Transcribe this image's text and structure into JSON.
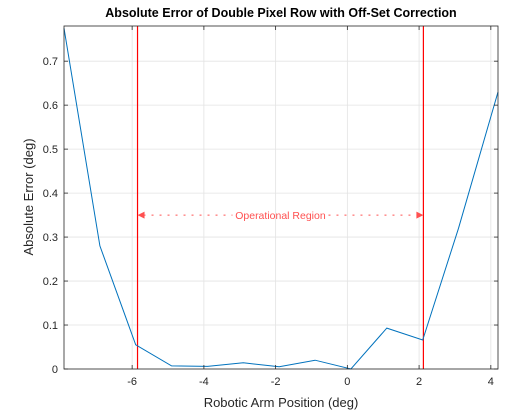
{
  "chart_data": {
    "type": "line",
    "title": "Absolute Error of Double Pixel Row with Off-Set Correction",
    "xlabel": "Robotic Arm Position (deg)",
    "ylabel": "Absolute Error (deg)",
    "xlim": [
      -7.9,
      4.2
    ],
    "ylim": [
      0,
      0.78
    ],
    "xticks": [
      -6,
      -4,
      -2,
      0,
      2,
      4
    ],
    "xtick_labels": [
      "-6",
      "-4",
      "-2",
      "0",
      "2",
      "4"
    ],
    "yticks": [
      0,
      0.1,
      0.2,
      0.3,
      0.4,
      0.5,
      0.6,
      0.7
    ],
    "ytick_labels": [
      "0",
      "0.1",
      "0.2",
      "0.3",
      "0.4",
      "0.5",
      "0.6",
      "0.7"
    ],
    "grid": true,
    "series": [
      {
        "color": "#0072bd",
        "x": [
          -7.9,
          -6.9,
          -5.9,
          -4.9,
          -3.9,
          -2.9,
          -1.9,
          -0.9,
          0.1,
          1.1,
          2.1,
          3.1,
          4.2
        ],
        "y": [
          0.775,
          0.28,
          0.055,
          0.007,
          0.006,
          0.014,
          0.005,
          0.02,
          0.0,
          0.093,
          0.066,
          0.32,
          0.63
        ]
      }
    ],
    "vlines": [
      {
        "x": -5.85,
        "color": "#ff0000"
      },
      {
        "x": 2.12,
        "color": "#ff0000"
      }
    ],
    "annotation": {
      "text": "Operational Region",
      "x_from": -5.85,
      "x_to": 2.12,
      "y": 0.35,
      "color": "#ff5050"
    }
  }
}
